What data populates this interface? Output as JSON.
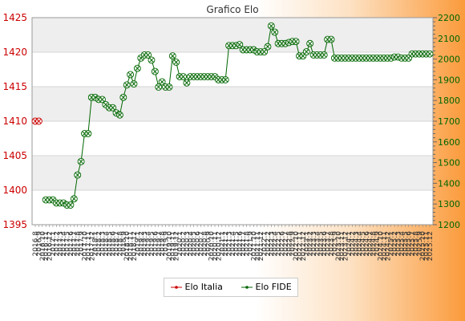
{
  "chart_data": {
    "type": "line",
    "title": "Grafico Elo",
    "y_left": {
      "min": 1395,
      "max": 1425,
      "ticks": [
        1395,
        1400,
        1405,
        1410,
        1415,
        1420,
        1425
      ],
      "color": "#cc0000"
    },
    "y_right": {
      "min": 1200,
      "max": 2200,
      "ticks": [
        1200,
        1300,
        1400,
        1500,
        1600,
        1700,
        1800,
        1900,
        2000,
        2100,
        2200
      ],
      "color": "#006600"
    },
    "grid": true,
    "legend_position": "bottom-center",
    "x": [
      "2016.8",
      "2016.9",
      "2016.10",
      "2016.11",
      "2016.12",
      "2017.1",
      "2017.2",
      "2017.3",
      "2017.4",
      "2017.5",
      "2017.6",
      "2017.7",
      "2017.8",
      "2017.9",
      "2017.10",
      "2017.11",
      "2017.12",
      "2018.1",
      "2018.2",
      "2018.3",
      "2018.4",
      "2018.5",
      "2018.6",
      "2018.7",
      "2018.8",
      "2018.9",
      "2018.10",
      "2018.11",
      "2018.12",
      "2019.1",
      "2019.2",
      "2019.3",
      "2019.4",
      "2019.5",
      "2019.6",
      "2019.7",
      "2019.8",
      "2019.9",
      "2019.10",
      "2019.11",
      "2019.12",
      "2020.1",
      "2020.2",
      "2020.3",
      "2020.4",
      "2020.5",
      "2020.6",
      "2020.7",
      "2020.8",
      "2020.9",
      "2020.10",
      "2020.11",
      "2020.12",
      "2021.1",
      "2021.2",
      "2021.3",
      "2021.4",
      "2021.5",
      "2021.6",
      "2021.7",
      "2021.8",
      "2021.9",
      "2021.10",
      "2021.11",
      "2021.12",
      "2022.1",
      "2022.2",
      "2022.3",
      "2022.4",
      "2022.5",
      "2022.6",
      "2022.7",
      "2022.8",
      "2022.9",
      "2022.10",
      "2022.11",
      "2022.12",
      "2023.1",
      "2023.2",
      "2023.3",
      "2023.4",
      "2023.5",
      "2023.6",
      "2023.7",
      "2023.8",
      "2023.9",
      "2023.10",
      "2023.11",
      "2023.12",
      "2024.1",
      "2024.2",
      "2024.3",
      "2024.4",
      "2024.5",
      "2024.6",
      "2024.7",
      "2024.8",
      "2024.9",
      "2024.10",
      "2024.11",
      "2024.12",
      "2025.1",
      "2025.2",
      "2025.3",
      "2025.4",
      "2025.5",
      "2025.6",
      "2025.7",
      "2025.8",
      "2025.9",
      "2025.10",
      "2025.11",
      "2025.12"
    ],
    "series": [
      {
        "name": "Elo Italia",
        "axis": "left",
        "color": "#cc0000",
        "marker": "circle-x",
        "values": [
          1410,
          1410,
          null,
          null,
          null,
          null,
          null,
          null,
          null,
          null,
          null,
          null,
          null,
          null,
          null,
          null,
          null,
          null,
          null,
          null,
          null,
          null,
          null,
          null,
          null,
          null,
          null,
          null,
          null,
          null,
          null,
          null,
          null,
          null,
          null,
          null,
          null,
          null,
          null,
          null,
          null,
          null,
          null,
          null,
          null,
          null,
          null,
          null,
          null,
          null,
          null,
          null,
          null,
          null,
          null,
          null,
          null,
          null,
          null,
          null,
          null,
          null,
          null,
          null,
          null,
          null,
          null,
          null,
          null,
          null,
          null,
          null,
          null,
          null,
          null,
          null,
          null,
          null,
          null,
          null,
          null,
          null,
          null,
          null,
          null,
          null,
          null,
          null,
          null,
          null,
          null,
          null,
          null,
          null,
          null,
          null,
          null,
          null,
          null,
          null,
          null,
          null,
          null,
          null,
          null,
          null,
          null,
          null,
          null,
          null,
          null,
          null,
          null
        ]
      },
      {
        "name": "Elo FIDE",
        "axis": "right",
        "color": "#006600",
        "marker": "circle-x",
        "values": [
          null,
          null,
          null,
          1320,
          1320,
          1320,
          1305,
          1305,
          1305,
          1295,
          1295,
          1325,
          1440,
          1505,
          1640,
          1640,
          1815,
          1815,
          1805,
          1805,
          1780,
          1765,
          1765,
          1740,
          1730,
          1815,
          1875,
          1925,
          1880,
          1955,
          2005,
          2020,
          2020,
          1995,
          1940,
          1865,
          1890,
          1865,
          1865,
          2015,
          1985,
          1915,
          1915,
          1885,
          1915,
          1915,
          1915,
          1915,
          1915,
          1915,
          1915,
          1915,
          1900,
          1900,
          1900,
          2065,
          2065,
          2065,
          2070,
          2045,
          2045,
          2045,
          2045,
          2035,
          2035,
          2035,
          2060,
          2160,
          2130,
          2075,
          2075,
          2075,
          2080,
          2085,
          2085,
          2015,
          2015,
          2035,
          2075,
          2020,
          2020,
          2020,
          2020,
          2095,
          2095,
          2005,
          2005,
          2005,
          2005,
          2005,
          2005,
          2005,
          2005,
          2005,
          2005,
          2005,
          2005,
          2005,
          2005,
          2005,
          2005,
          2005,
          2010,
          2010,
          2005,
          2005,
          2005,
          2025,
          2025,
          2025,
          2025,
          2025,
          2025
        ]
      }
    ]
  }
}
